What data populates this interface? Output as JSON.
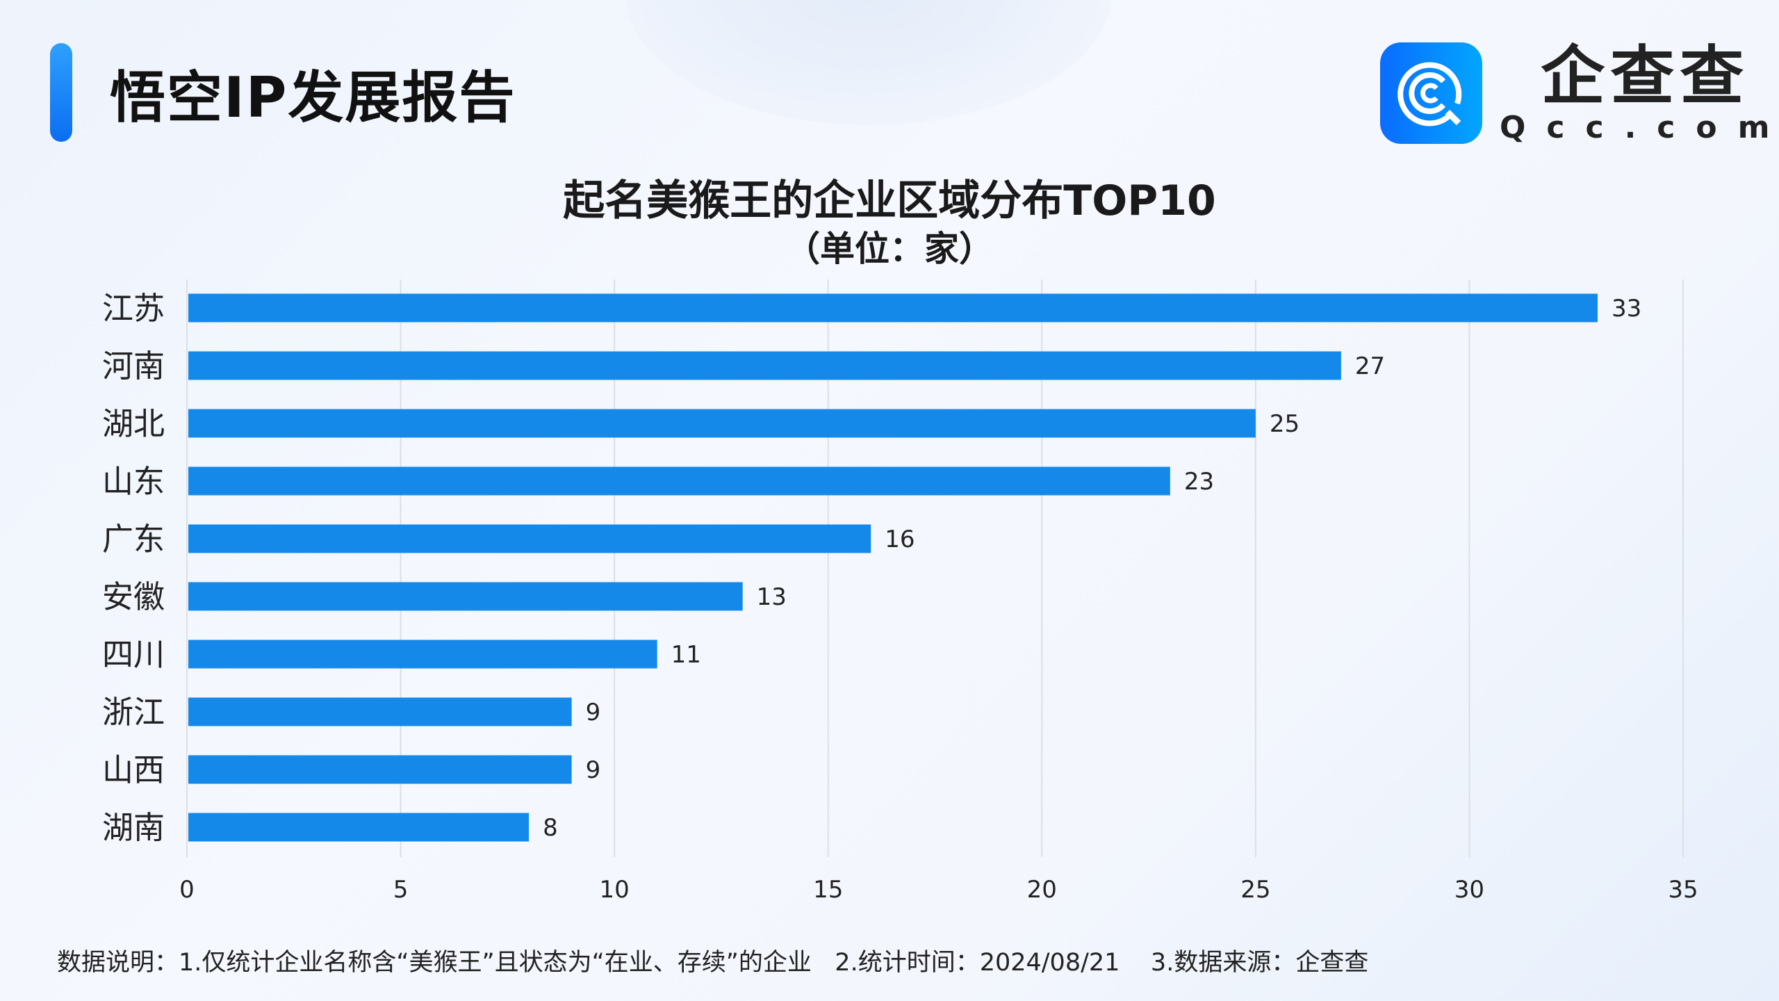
{
  "header": {
    "title": "悟空IP发展报告",
    "logo_cn": "企查查",
    "logo_en": "Qcc.com"
  },
  "chart_data": {
    "type": "bar",
    "orientation": "horizontal",
    "title": "起名美猴王的企业区域分布TOP10",
    "subtitle": "（单位：家）",
    "categories": [
      "江苏",
      "河南",
      "湖北",
      "山东",
      "广东",
      "安徽",
      "四川",
      "浙江",
      "山西",
      "湖南"
    ],
    "values": [
      33,
      27,
      25,
      23,
      16,
      13,
      11,
      9,
      9,
      8
    ],
    "xlim": [
      0,
      35
    ],
    "xticks": [
      0,
      5,
      10,
      15,
      20,
      25,
      30,
      35
    ],
    "grid": true,
    "bar_color": "#1589ea"
  },
  "footer": {
    "note": "数据说明：1.仅统计企业名称含“美猴王”且状态为“在业、存续”的企业   2.统计时间：2024/08/21    3.数据来源：企查查"
  }
}
